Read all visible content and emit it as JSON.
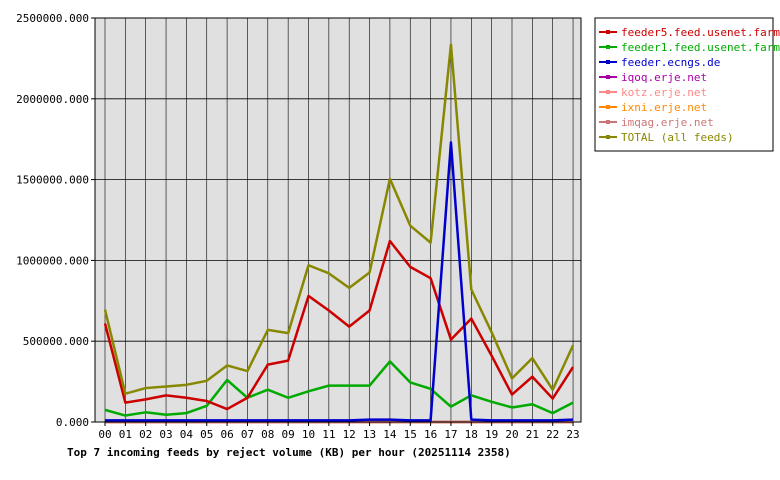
{
  "chart_data": {
    "type": "line",
    "title": "Top 7 incoming feeds by reject volume (KB) per hour (20251114 2358)",
    "xlabel": "",
    "ylabel": "",
    "ylim": [
      0,
      2500000
    ],
    "y_ticks": [
      "0.000",
      "500000.000",
      "1000000.000",
      "1500000.000",
      "2000000.000",
      "2500000.000"
    ],
    "categories": [
      "00",
      "01",
      "02",
      "03",
      "04",
      "05",
      "06",
      "07",
      "08",
      "09",
      "10",
      "11",
      "12",
      "13",
      "14",
      "15",
      "16",
      "17",
      "18",
      "19",
      "20",
      "21",
      "22",
      "23"
    ],
    "grid": true,
    "legend_position": "top-right",
    "series": [
      {
        "name": "feeder5.feed.usenet.farm",
        "color": "#cc0000",
        "values": [
          610000,
          120000,
          140000,
          165000,
          150000,
          130000,
          80000,
          150000,
          355000,
          380000,
          780000,
          690000,
          590000,
          690000,
          1120000,
          960000,
          890000,
          510000,
          640000,
          410000,
          170000,
          280000,
          145000,
          340000
        ]
      },
      {
        "name": "feeder1.feed.usenet.farm",
        "color": "#00aa00",
        "values": [
          75000,
          40000,
          60000,
          45000,
          55000,
          100000,
          260000,
          150000,
          200000,
          150000,
          190000,
          225000,
          225000,
          225000,
          375000,
          245000,
          205000,
          95000,
          165000,
          125000,
          90000,
          110000,
          55000,
          120000
        ]
      },
      {
        "name": "feeder.ecngs.de",
        "color": "#0000cc",
        "values": [
          10000,
          10000,
          10000,
          10000,
          10000,
          10000,
          10000,
          10000,
          10000,
          10000,
          10000,
          10000,
          10000,
          15000,
          15000,
          10000,
          10000,
          1730000,
          15000,
          10000,
          10000,
          10000,
          10000,
          15000
        ]
      },
      {
        "name": "iqoq.erje.net",
        "color": "#aa00aa",
        "values": [
          0,
          0,
          0,
          0,
          0,
          0,
          0,
          0,
          0,
          0,
          0,
          0,
          0,
          0,
          0,
          0,
          0,
          0,
          0,
          0,
          0,
          0,
          0,
          0
        ]
      },
      {
        "name": "kotz.erje.net",
        "color": "#ff8888",
        "values": [
          0,
          0,
          0,
          0,
          0,
          0,
          0,
          0,
          0,
          0,
          0,
          0,
          0,
          0,
          0,
          0,
          0,
          0,
          0,
          0,
          0,
          0,
          0,
          0
        ]
      },
      {
        "name": "ixni.erje.net",
        "color": "#ff8800",
        "values": [
          0,
          0,
          0,
          0,
          0,
          0,
          0,
          0,
          0,
          0,
          0,
          0,
          0,
          0,
          0,
          0,
          0,
          0,
          0,
          0,
          0,
          0,
          0,
          0
        ]
      },
      {
        "name": "imqag.erje.net",
        "color": "#cc7777",
        "values": [
          0,
          0,
          0,
          0,
          0,
          0,
          0,
          0,
          0,
          0,
          0,
          0,
          0,
          0,
          0,
          0,
          0,
          0,
          0,
          0,
          0,
          0,
          0,
          0
        ]
      },
      {
        "name": "TOTAL (all feeds)",
        "color": "#888800",
        "values": [
          695000,
          175000,
          210000,
          220000,
          230000,
          255000,
          350000,
          315000,
          570000,
          550000,
          970000,
          920000,
          830000,
          925000,
          1505000,
          1215000,
          1110000,
          2335000,
          820000,
          555000,
          270000,
          395000,
          200000,
          475000
        ]
      }
    ]
  }
}
